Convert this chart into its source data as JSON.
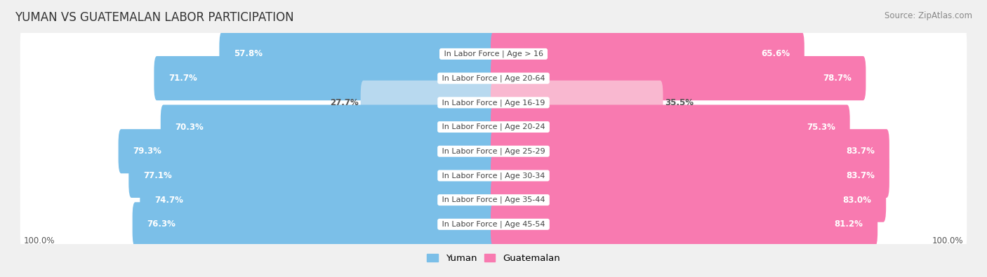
{
  "title": "YUMAN VS GUATEMALAN LABOR PARTICIPATION",
  "source": "Source: ZipAtlas.com",
  "categories": [
    "In Labor Force | Age > 16",
    "In Labor Force | Age 20-64",
    "In Labor Force | Age 16-19",
    "In Labor Force | Age 20-24",
    "In Labor Force | Age 25-29",
    "In Labor Force | Age 30-34",
    "In Labor Force | Age 35-44",
    "In Labor Force | Age 45-54"
  ],
  "yuman_values": [
    57.8,
    71.7,
    27.7,
    70.3,
    79.3,
    77.1,
    74.7,
    76.3
  ],
  "guatemalan_values": [
    65.6,
    78.7,
    35.5,
    75.3,
    83.7,
    83.7,
    83.0,
    81.2
  ],
  "yuman_color": "#7bbfe8",
  "guatemalan_color": "#f87ab0",
  "yuman_color_light": "#b8d9ef",
  "guatemalan_color_light": "#f9b8d0",
  "light_indices": [
    2
  ],
  "background_color": "#f0f0f0",
  "row_bg_color": "#ffffff",
  "axis_label_left": "100.0%",
  "axis_label_right": "100.0%",
  "title_fontsize": 12,
  "source_fontsize": 8.5,
  "bar_label_fontsize": 8.5,
  "category_fontsize": 8,
  "legend_fontsize": 9.5,
  "max_val": 100
}
